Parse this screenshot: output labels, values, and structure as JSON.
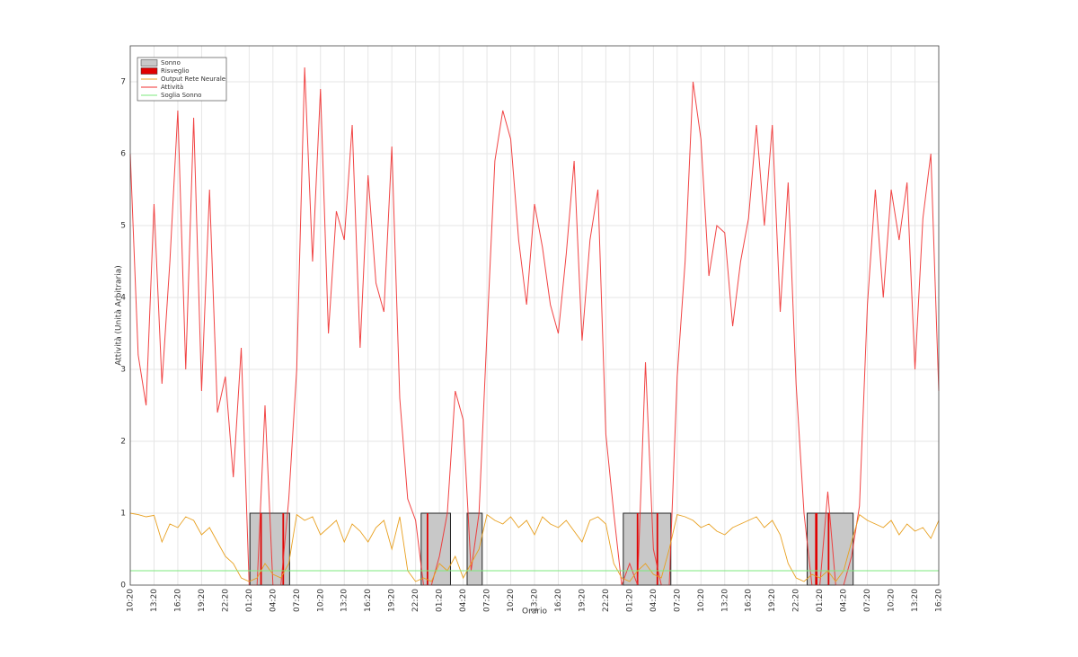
{
  "chart_data": {
    "type": "line",
    "xlabel": "Orario",
    "ylabel": "Attività (Unità Arbitraria)",
    "xlim": [
      0,
      102
    ],
    "ylim": [
      0,
      7.5
    ],
    "yticks": [
      0,
      1,
      2,
      3,
      4,
      5,
      6,
      7
    ],
    "xticks": [
      {
        "value": 0,
        "label": "10:20"
      },
      {
        "value": 3,
        "label": "13:20"
      },
      {
        "value": 6,
        "label": "16:20"
      },
      {
        "value": 9,
        "label": "19:20"
      },
      {
        "value": 12,
        "label": "22:20"
      },
      {
        "value": 15,
        "label": "01:20"
      },
      {
        "value": 18,
        "label": "04:20"
      },
      {
        "value": 21,
        "label": "07:20"
      },
      {
        "value": 24,
        "label": "10:20"
      },
      {
        "value": 27,
        "label": "13:20"
      },
      {
        "value": 30,
        "label": "16:20"
      },
      {
        "value": 33,
        "label": "19:20"
      },
      {
        "value": 36,
        "label": "22:20"
      },
      {
        "value": 39,
        "label": "01:20"
      },
      {
        "value": 42,
        "label": "04:20"
      },
      {
        "value": 45,
        "label": "07:20"
      },
      {
        "value": 48,
        "label": "10:20"
      },
      {
        "value": 51,
        "label": "13:20"
      },
      {
        "value": 54,
        "label": "16:20"
      },
      {
        "value": 57,
        "label": "19:20"
      },
      {
        "value": 60,
        "label": "22:20"
      },
      {
        "value": 63,
        "label": "01:20"
      },
      {
        "value": 66,
        "label": "04:20"
      },
      {
        "value": 69,
        "label": "07:20"
      },
      {
        "value": 72,
        "label": "10:20"
      },
      {
        "value": 75,
        "label": "13:20"
      },
      {
        "value": 78,
        "label": "16:20"
      },
      {
        "value": 81,
        "label": "19:20"
      },
      {
        "value": 84,
        "label": "22:20"
      },
      {
        "value": 87,
        "label": "01:20"
      },
      {
        "value": 90,
        "label": "04:20"
      },
      {
        "value": 93,
        "label": "07:20"
      },
      {
        "value": 96,
        "label": "10:20"
      },
      {
        "value": 99,
        "label": "13:20"
      },
      {
        "value": 102,
        "label": "16:20"
      }
    ],
    "grid": true,
    "legend": "upper left",
    "sleep": {
      "name": "Sonno",
      "color": "#c8c8c8",
      "intervals": [
        {
          "start": 15.1,
          "end": 20.1,
          "height": 1
        },
        {
          "start": 36.7,
          "end": 40.4,
          "height": 1
        },
        {
          "start": 42.5,
          "end": 44.4,
          "height": 1
        },
        {
          "start": 62.2,
          "end": 68.2,
          "height": 1
        },
        {
          "start": 85.4,
          "end": 91.2,
          "height": 1
        }
      ]
    },
    "wake": {
      "name": "Risveglio",
      "color": "#e00000",
      "intervals": [
        {
          "start": 16.4,
          "end": 16.6,
          "height": 1
        },
        {
          "start": 19.2,
          "end": 19.4,
          "height": 1
        },
        {
          "start": 37.4,
          "end": 37.6,
          "height": 1
        },
        {
          "start": 63.9,
          "end": 64.1,
          "height": 1
        },
        {
          "start": 66.4,
          "end": 66.6,
          "height": 1
        },
        {
          "start": 86.4,
          "end": 86.7,
          "height": 1
        },
        {
          "start": 88.0,
          "end": 88.2,
          "height": 1
        }
      ]
    },
    "x": [
      0,
      1,
      2,
      3,
      4,
      5,
      6,
      7,
      8,
      9,
      10,
      11,
      12,
      13,
      14,
      15,
      16,
      17,
      18,
      19,
      20,
      21,
      22,
      23,
      24,
      25,
      26,
      27,
      28,
      29,
      30,
      31,
      32,
      33,
      34,
      35,
      36,
      37,
      38,
      39,
      40,
      41,
      42,
      43,
      44,
      45,
      46,
      47,
      48,
      49,
      50,
      51,
      52,
      53,
      54,
      55,
      56,
      57,
      58,
      59,
      60,
      61,
      62,
      63,
      64,
      65,
      66,
      67,
      68,
      69,
      70,
      71,
      72,
      73,
      74,
      75,
      76,
      77,
      78,
      79,
      80,
      81,
      82,
      83,
      84,
      85,
      86,
      87,
      88,
      89,
      90,
      91,
      92,
      93,
      94,
      95,
      96,
      97,
      98,
      99,
      100,
      101,
      102
    ],
    "series": [
      {
        "name": "Output Rete Neurale",
        "color": "#e8a020",
        "values": [
          1,
          0.98,
          0.95,
          0.97,
          0.6,
          0.85,
          0.8,
          0.95,
          0.9,
          0.7,
          0.8,
          0.6,
          0.4,
          0.3,
          0.1,
          0.05,
          0.1,
          0.3,
          0.15,
          0.1,
          0.3,
          0.98,
          0.9,
          0.95,
          0.7,
          0.8,
          0.9,
          0.6,
          0.85,
          0.75,
          0.6,
          0.8,
          0.9,
          0.5,
          0.95,
          0.2,
          0.05,
          0.1,
          0.05,
          0.3,
          0.2,
          0.4,
          0.1,
          0.3,
          0.5,
          0.98,
          0.9,
          0.85,
          0.95,
          0.8,
          0.9,
          0.7,
          0.95,
          0.85,
          0.8,
          0.9,
          0.75,
          0.6,
          0.9,
          0.95,
          0.85,
          0.3,
          0.1,
          0.05,
          0.2,
          0.3,
          0.15,
          0.1,
          0.5,
          0.98,
          0.95,
          0.9,
          0.8,
          0.85,
          0.75,
          0.7,
          0.8,
          0.85,
          0.9,
          0.95,
          0.8,
          0.9,
          0.7,
          0.3,
          0.1,
          0.05,
          0.15,
          0.1,
          0.2,
          0.05,
          0.2,
          0.6,
          0.98,
          0.9,
          0.85,
          0.8,
          0.9,
          0.7,
          0.85,
          0.75,
          0.8,
          0.65,
          0.9
        ]
      },
      {
        "name": "Attività",
        "color": "#f03030",
        "values": [
          6.0,
          3.2,
          2.5,
          5.3,
          2.8,
          4.5,
          6.6,
          3.0,
          6.5,
          2.7,
          5.5,
          2.4,
          2.9,
          1.5,
          3.3,
          0,
          0,
          2.5,
          0,
          0,
          1.2,
          3.0,
          7.2,
          4.5,
          6.9,
          3.5,
          5.2,
          4.8,
          6.4,
          3.3,
          5.7,
          4.2,
          3.8,
          6.1,
          2.6,
          1.2,
          0.9,
          0,
          0,
          0.4,
          1.0,
          2.7,
          2.3,
          0.2,
          1.0,
          3.5,
          5.9,
          6.6,
          6.2,
          4.8,
          3.9,
          5.3,
          4.7,
          3.9,
          3.5,
          4.6,
          5.9,
          3.4,
          4.8,
          5.5,
          2.1,
          1.0,
          0,
          0.3,
          0,
          3.1,
          0.5,
          0,
          0,
          2.9,
          4.5,
          7.0,
          6.2,
          4.3,
          5.0,
          4.9,
          3.6,
          4.5,
          5.1,
          6.4,
          5.0,
          6.4,
          3.8,
          5.6,
          2.8,
          1.0,
          0,
          0,
          1.3,
          0,
          0,
          0.4,
          1.1,
          3.9,
          5.5,
          4.0,
          5.5,
          4.8,
          5.6,
          3.0,
          5.1,
          6.0,
          2.7
        ]
      }
    ],
    "threshold": {
      "name": "Soglia Sonno",
      "color": "#7de87d",
      "value": 0.2
    }
  }
}
